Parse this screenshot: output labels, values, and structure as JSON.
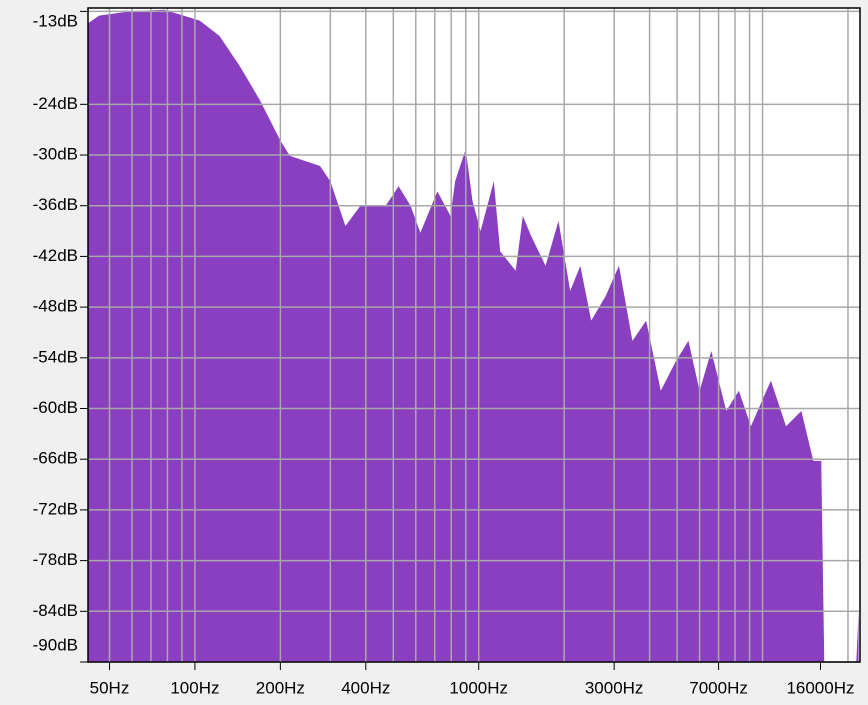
{
  "chart_data": {
    "type": "area",
    "color": "#8a3ec0",
    "grid": true,
    "log_x": true,
    "xlim": [
      42,
      22050
    ],
    "ylim": [
      -90,
      -12.6
    ],
    "xticks": [
      {
        "value": 50,
        "label": "50Hz"
      },
      {
        "value": 100,
        "label": "100Hz"
      },
      {
        "value": 200,
        "label": "200Hz"
      },
      {
        "value": 400,
        "label": "400Hz"
      },
      {
        "value": 1000,
        "label": "1000Hz"
      },
      {
        "value": 3000,
        "label": "3000Hz"
      },
      {
        "value": 7000,
        "label": "7000Hz"
      },
      {
        "value": 16000,
        "label": "16000Hz"
      }
    ],
    "x_grid_lines": [
      50,
      60,
      70,
      80,
      90,
      100,
      200,
      300,
      400,
      500,
      600,
      700,
      800,
      900,
      1000,
      2000,
      3000,
      4000,
      5000,
      6000,
      7000,
      8000,
      9000,
      10000,
      20000
    ],
    "yticks": [
      {
        "value": -13,
        "label": "-13dB"
      },
      {
        "value": -24,
        "label": "-24dB"
      },
      {
        "value": -30,
        "label": "-30dB"
      },
      {
        "value": -36,
        "label": "-36dB"
      },
      {
        "value": -42,
        "label": "-42dB"
      },
      {
        "value": -48,
        "label": "-48dB"
      },
      {
        "value": -54,
        "label": "-54dB"
      },
      {
        "value": -60,
        "label": "-60dB"
      },
      {
        "value": -66,
        "label": "-66dB"
      },
      {
        "value": -72,
        "label": "-72dB"
      },
      {
        "value": -78,
        "label": "-78dB"
      },
      {
        "value": -84,
        "label": "-84dB"
      },
      {
        "value": -90,
        "label": "-90dB"
      }
    ],
    "x": [
      42,
      46,
      59,
      78,
      104,
      122,
      144,
      170,
      200,
      216,
      276,
      300,
      339,
      383,
      470,
      522,
      575,
      623,
      715,
      795,
      826,
      900,
      950,
      1015,
      1130,
      1190,
      1350,
      1430,
      1530,
      1720,
      1910,
      2100,
      2280,
      2490,
      2800,
      3120,
      3480,
      3890,
      4380,
      4950,
      5480,
      6000,
      6600,
      7450,
      8250,
      9100,
      10700,
      12100,
      13700,
      15100,
      16100,
      16500,
      21400,
      21800
    ],
    "values": [
      -14.4,
      -13.5,
      -13,
      -12.8,
      -14.1,
      -15.9,
      -19.5,
      -23.6,
      -28.3,
      -30.1,
      -31.3,
      -33.1,
      -38.4,
      -36,
      -36,
      -33.7,
      -36,
      -39.2,
      -34.3,
      -37.2,
      -33.1,
      -29.3,
      -35.4,
      -39,
      -33.1,
      -41.4,
      -43.7,
      -37.2,
      -39.6,
      -43.1,
      -37.8,
      -46.1,
      -43.1,
      -49.6,
      -46.7,
      -43.1,
      -52,
      -49.6,
      -57.9,
      -54.4,
      -52,
      -57.9,
      -53.2,
      -60.3,
      -57.9,
      -62.1,
      -56.7,
      -62.1,
      -60.3,
      -66.2,
      -66.2,
      -90,
      -90,
      -84
    ]
  }
}
